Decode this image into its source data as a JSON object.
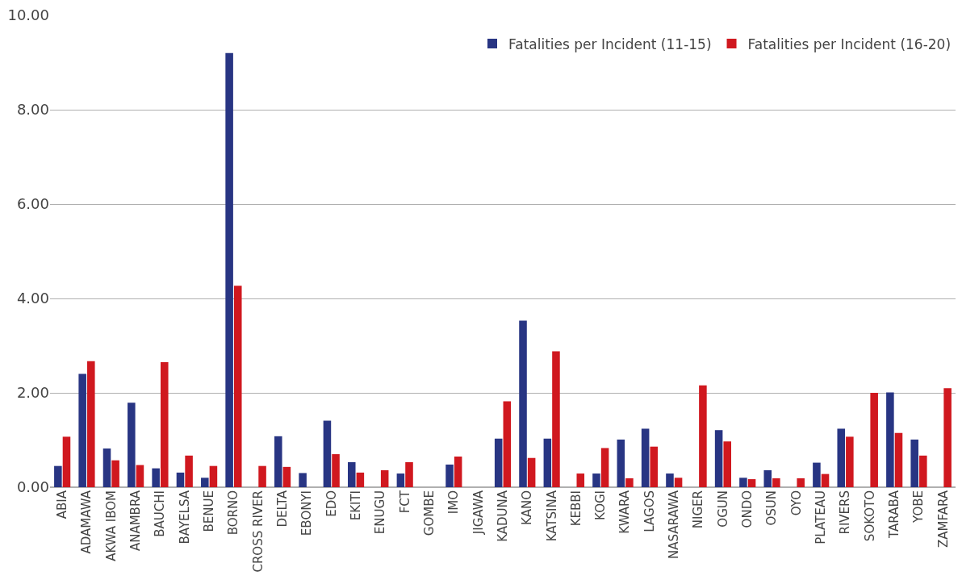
{
  "chart_data": {
    "type": "bar",
    "categories": [
      "ABIA",
      "ADAMAWA",
      "AKWA IBOM",
      "ANAMBRA",
      "BAUCHI",
      "BAYELSA",
      "BENUE",
      "BORNO",
      "CROSS RIVER",
      "DELTA",
      "EBONYI",
      "EDO",
      "EKITI",
      "ENUGU",
      "FCT",
      "GOMBE",
      "IMO",
      "JIGAWA",
      "KADUNA",
      "KANO",
      "KATSINA",
      "KEBBI",
      "KOGI",
      "KWARA",
      "LAGOS",
      "NASARAWA",
      "NIGER",
      "OGUN",
      "ONDO",
      "OSUN",
      "OYO",
      "PLATEAU",
      "RIVERS",
      "SOKOTO",
      "TARABA",
      "YOBE",
      "ZAMFARA"
    ],
    "series": [
      {
        "name": "Fatalities per Incident (11-15)",
        "color": "#283583",
        "values": [
          0.45,
          2.4,
          0.82,
          1.79,
          0.4,
          0.31,
          0.2,
          9.2,
          null,
          1.08,
          0.3,
          1.41,
          0.53,
          null,
          0.29,
          null,
          0.48,
          null,
          1.03,
          3.53,
          1.03,
          null,
          0.29,
          1.01,
          1.24,
          0.29,
          null,
          1.21,
          0.2,
          0.36,
          null,
          0.52,
          1.24,
          null,
          2.01,
          1.01,
          null
        ]
      },
      {
        "name": "Fatalities per Incident (16-20)",
        "color": "#d0181f",
        "values": [
          1.07,
          2.67,
          0.57,
          0.47,
          2.65,
          0.67,
          0.45,
          4.27,
          0.45,
          0.43,
          null,
          0.7,
          0.31,
          0.36,
          0.53,
          null,
          0.65,
          null,
          1.82,
          0.62,
          2.88,
          0.29,
          0.83,
          0.19,
          0.86,
          0.2,
          2.16,
          0.97,
          0.17,
          0.19,
          0.19,
          0.28,
          1.07,
          2.0,
          1.15,
          0.67,
          2.1
        ]
      }
    ],
    "ylim": [
      0,
      10
    ],
    "yticks": [
      {
        "value": 0,
        "label": "0.00"
      },
      {
        "value": 2,
        "label": "2.00"
      },
      {
        "value": 4,
        "label": "4.00"
      },
      {
        "value": 6,
        "label": "6.00"
      },
      {
        "value": 8,
        "label": "8.00"
      },
      {
        "value": 10,
        "label": "10.00"
      }
    ],
    "grid": "y",
    "legend": "top right"
  }
}
